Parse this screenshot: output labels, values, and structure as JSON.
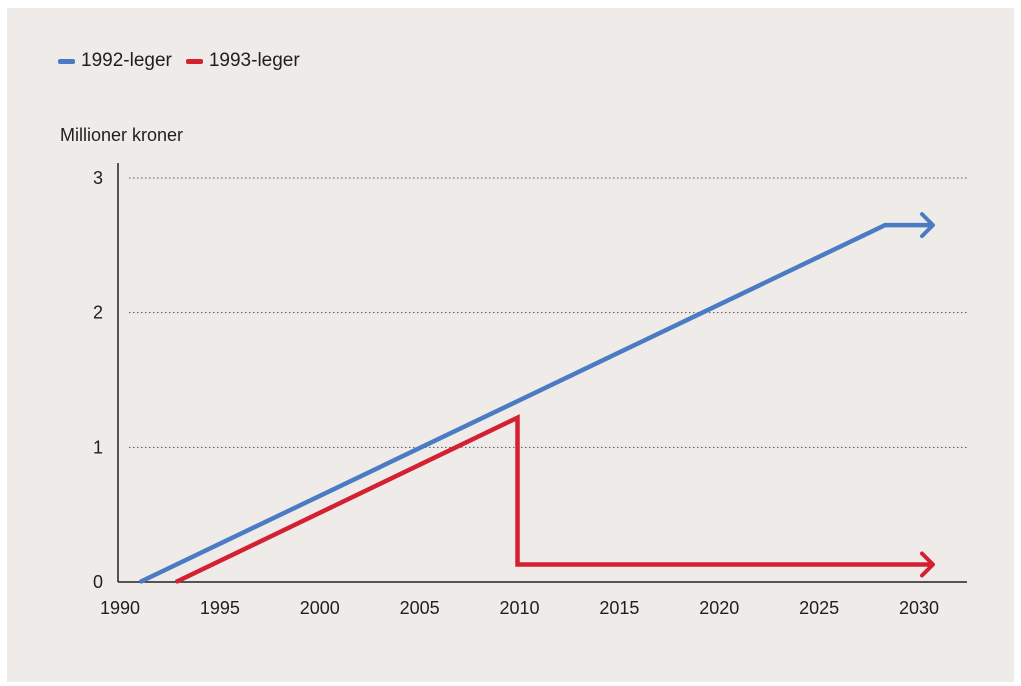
{
  "chart_data": {
    "type": "line",
    "title": "",
    "ylabel": "Millioner kroner",
    "xlabel": "",
    "xlim": [
      1990,
      2032
    ],
    "ylim": [
      0,
      3
    ],
    "x_ticks": [
      1990,
      1995,
      2000,
      2005,
      2010,
      2015,
      2020,
      2025,
      2030
    ],
    "y_ticks": [
      0,
      1,
      2,
      3
    ],
    "grid": "horizontal dotted",
    "legend_position": "top-left",
    "series": [
      {
        "name": "1992-leger",
        "color": "#4a7bc4",
        "points": [
          [
            1991.0,
            0.0
          ],
          [
            2028.3,
            2.65
          ],
          [
            2030.7,
            2.65
          ]
        ],
        "arrow_end": true
      },
      {
        "name": "1993-leger",
        "color": "#d42030",
        "points": [
          [
            1992.8,
            0.0
          ],
          [
            2009.9,
            1.22
          ],
          [
            2009.9,
            0.13
          ],
          [
            2030.7,
            0.13
          ]
        ],
        "arrow_end": true
      }
    ]
  }
}
